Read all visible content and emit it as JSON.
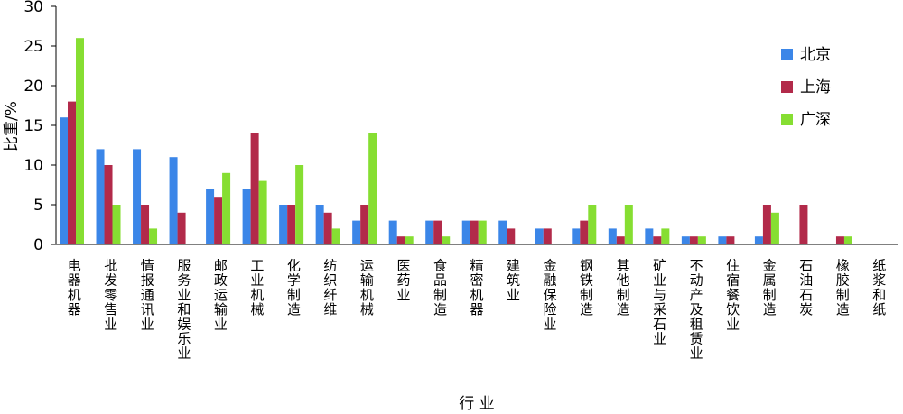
{
  "chart_data": {
    "type": "bar",
    "xlabel": "行 业",
    "ylabel": "比重/%",
    "ylim": [
      0,
      30
    ],
    "yticks": [
      0,
      5,
      10,
      15,
      20,
      25,
      30
    ],
    "grid": false,
    "legend": "right",
    "categories": [
      "电器机器",
      "批发零售业",
      "情报通讯业",
      "服务业和娱乐业",
      "邮政运输业",
      "工业机械",
      "化学制造",
      "纺织纤维",
      "运输机械",
      "医药业",
      "食品制造",
      "精密机器",
      "建筑业",
      "金融保险业",
      "钢铁制造",
      "其他制造",
      "矿业与采石业",
      "不动产及租赁业",
      "住宿餐饮业",
      "金属制造",
      "石油石炭",
      "橡胶制造",
      "纸浆和纸"
    ],
    "series": [
      {
        "name": "北京",
        "color": "#3b86e8",
        "values": [
          16,
          12,
          12,
          11,
          7,
          7,
          5,
          5,
          3,
          3,
          3,
          3,
          3,
          2,
          2,
          2,
          2,
          1,
          1,
          1,
          0,
          0,
          0
        ]
      },
      {
        "name": "上海",
        "color": "#b22a4a",
        "values": [
          18,
          10,
          5,
          4,
          6,
          14,
          5,
          4,
          5,
          1,
          3,
          3,
          2,
          2,
          3,
          1,
          1,
          1,
          1,
          5,
          5,
          1,
          0
        ]
      },
      {
        "name": "广深",
        "color": "#86de32",
        "values": [
          26,
          5,
          2,
          0,
          9,
          8,
          10,
          2,
          14,
          1,
          1,
          3,
          0,
          0,
          5,
          5,
          2,
          1,
          0,
          4,
          0,
          1,
          0
        ]
      }
    ]
  }
}
